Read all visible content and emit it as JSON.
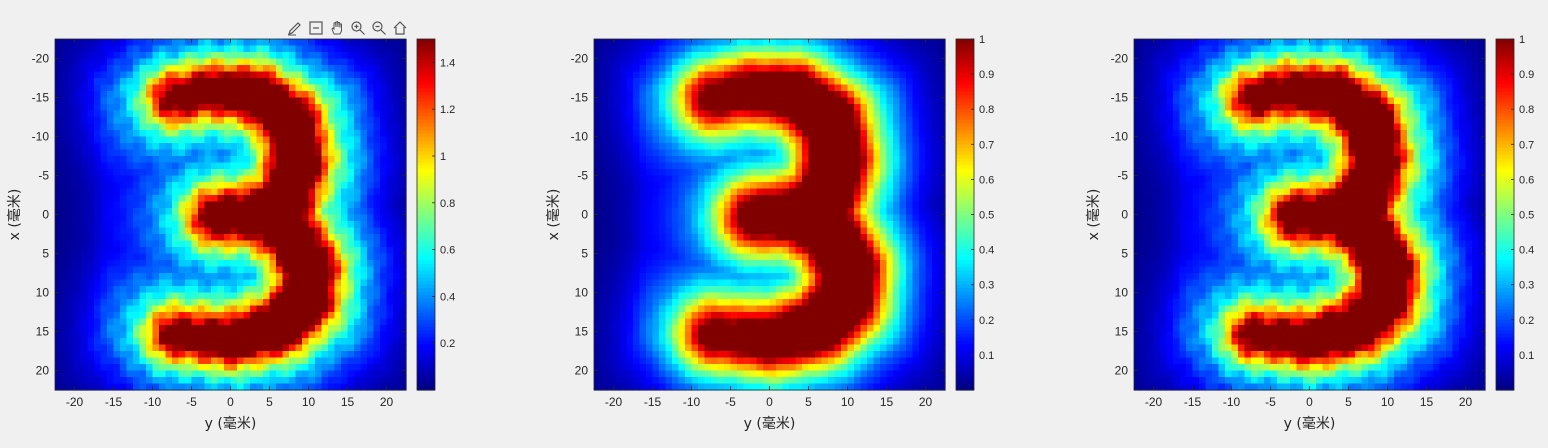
{
  "toolbar": {
    "tools": [
      {
        "name": "brush-icon"
      },
      {
        "name": "datatip-icon"
      },
      {
        "name": "pan-hand-icon"
      },
      {
        "name": "zoom-in-icon"
      },
      {
        "name": "zoom-out-icon"
      },
      {
        "name": "home-icon"
      }
    ]
  },
  "chart_data": [
    {
      "type": "heatmap",
      "title": "",
      "xlabel": "y (毫米)",
      "ylabel": "x (毫米)",
      "xlim": [
        -22.5,
        22.5
      ],
      "ylim": [
        22.5,
        -22.5
      ],
      "xticks": [
        -20,
        -15,
        -10,
        -5,
        0,
        5,
        10,
        15,
        20
      ],
      "xtick_labels": [
        "-20",
        "-15",
        "-10",
        "-5",
        "0",
        "5",
        "10",
        "15",
        "20"
      ],
      "yticks": [
        -20,
        -15,
        -10,
        -5,
        0,
        5,
        10,
        15,
        20
      ],
      "ytick_labels": [
        "-20",
        "-15",
        "-10",
        "-5",
        "0",
        "5",
        "10",
        "15",
        "20"
      ],
      "colormap": "jet",
      "clim": [
        0,
        1.5
      ],
      "colorbar_ticks": [
        0.2,
        0.4,
        0.6,
        0.8,
        1,
        1.2,
        1.4
      ],
      "colorbar_tick_labels": [
        "0.2",
        "0.4",
        "0.6",
        "0.8",
        "1",
        "1.2",
        "1.4"
      ],
      "content": "intensity pattern of digit 3 with interference ripples, peak values about 1.4"
    },
    {
      "type": "heatmap",
      "title": "",
      "xlabel": "y (毫米)",
      "ylabel": "x (毫米)",
      "xlim": [
        -22.5,
        22.5
      ],
      "ylim": [
        22.5,
        -22.5
      ],
      "xticks": [
        -20,
        -15,
        -10,
        -5,
        0,
        5,
        10,
        15,
        20
      ],
      "xtick_labels": [
        "-20",
        "-15",
        "-10",
        "-5",
        "0",
        "5",
        "10",
        "15",
        "20"
      ],
      "yticks": [
        -20,
        -15,
        -10,
        -5,
        0,
        5,
        10,
        15,
        20
      ],
      "ytick_labels": [
        "-20",
        "-15",
        "-10",
        "-5",
        "0",
        "5",
        "10",
        "15",
        "20"
      ],
      "colormap": "jet",
      "clim": [
        0,
        1
      ],
      "colorbar_ticks": [
        0.1,
        0.2,
        0.3,
        0.4,
        0.5,
        0.6,
        0.7,
        0.8,
        0.9,
        1
      ],
      "colorbar_tick_labels": [
        "0.1",
        "0.2",
        "0.3",
        "0.4",
        "0.5",
        "0.6",
        "0.7",
        "0.8",
        "0.9",
        "1"
      ],
      "content": "smooth normalized intensity of digit 3, peak near 1"
    },
    {
      "type": "heatmap",
      "title": "",
      "xlabel": "y (毫米)",
      "ylabel": "x (毫米)",
      "xlim": [
        -22.5,
        22.5
      ],
      "ylim": [
        22.5,
        -22.5
      ],
      "xticks": [
        -20,
        -15,
        -10,
        -5,
        0,
        5,
        10,
        15,
        20
      ],
      "xtick_labels": [
        "-20",
        "-15",
        "-10",
        "-5",
        "0",
        "5",
        "10",
        "15",
        "20"
      ],
      "yticks": [
        -20,
        -15,
        -10,
        -5,
        0,
        5,
        10,
        15,
        20
      ],
      "ytick_labels": [
        "-20",
        "-15",
        "-10",
        "-5",
        "0",
        "5",
        "10",
        "15",
        "20"
      ],
      "colormap": "jet",
      "clim": [
        0,
        1
      ],
      "colorbar_ticks": [
        0.1,
        0.2,
        0.3,
        0.4,
        0.5,
        0.6,
        0.7,
        0.8,
        0.9,
        1
      ],
      "colorbar_tick_labels": [
        "0.1",
        "0.2",
        "0.3",
        "0.4",
        "0.5",
        "0.6",
        "0.7",
        "0.8",
        "0.9",
        "1"
      ],
      "content": "normalized intensity of digit 3 with fine fringes, peak near 1"
    }
  ]
}
